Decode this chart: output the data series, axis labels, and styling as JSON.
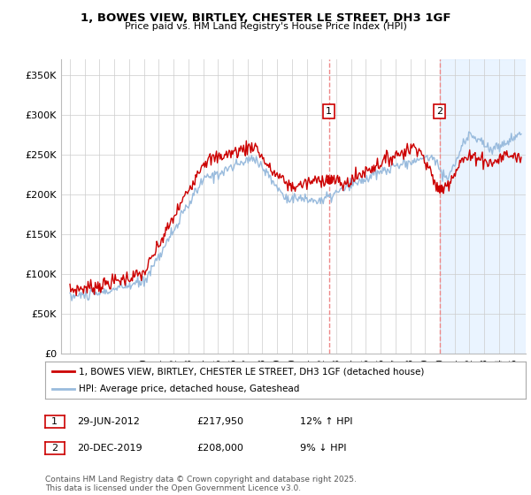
{
  "title": "1, BOWES VIEW, BIRTLEY, CHESTER LE STREET, DH3 1GF",
  "subtitle": "Price paid vs. HM Land Registry's House Price Index (HPI)",
  "ylabel_ticks": [
    "£0",
    "£50K",
    "£100K",
    "£150K",
    "£200K",
    "£250K",
    "£300K",
    "£350K"
  ],
  "ytick_values": [
    0,
    50000,
    100000,
    150000,
    200000,
    250000,
    300000,
    350000
  ],
  "ylim": [
    0,
    370000
  ],
  "legend_line1": "1, BOWES VIEW, BIRTLEY, CHESTER LE STREET, DH3 1GF (detached house)",
  "legend_line2": "HPI: Average price, detached house, Gateshead",
  "event1_label": "1",
  "event1_date": "29-JUN-2012",
  "event1_price": "£217,950",
  "event1_hpi": "12% ↑ HPI",
  "event2_label": "2",
  "event2_date": "20-DEC-2019",
  "event2_price": "£208,000",
  "event2_hpi": "9% ↓ HPI",
  "footer": "Contains HM Land Registry data © Crown copyright and database right 2025.\nThis data is licensed under the Open Government Licence v3.0.",
  "red_color": "#cc0000",
  "blue_color": "#99bbdd",
  "shade_color": "#ddeeff",
  "vline_color": "#ee8888",
  "background_color": "#ffffff",
  "grid_color": "#cccccc",
  "event1_x": 2012.5,
  "event2_x": 2019.97,
  "xlim_left": 1994.4,
  "xlim_right": 2025.8
}
